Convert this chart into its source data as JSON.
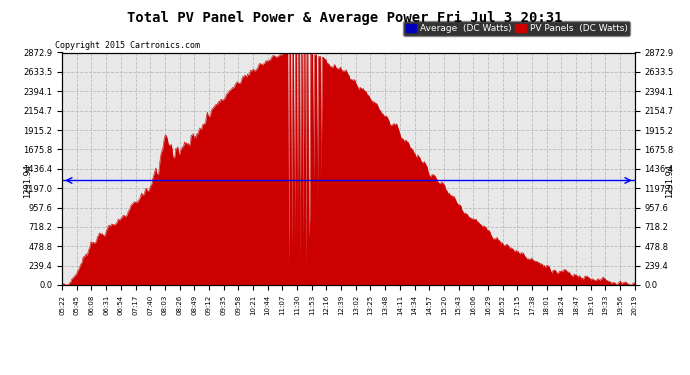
{
  "title": "Total PV Panel Power & Average Power Fri Jul 3 20:31",
  "copyright": "Copyright 2015 Cartronics.com",
  "average_value": 1291.94,
  "y_max": 2872.9,
  "y_ticks": [
    0.0,
    239.4,
    478.8,
    718.2,
    957.6,
    1197.0,
    1436.4,
    1675.8,
    1915.2,
    2154.7,
    2394.1,
    2633.5,
    2872.9
  ],
  "x_labels": [
    "05:22",
    "05:45",
    "06:08",
    "06:31",
    "06:54",
    "07:17",
    "07:40",
    "08:03",
    "08:26",
    "08:49",
    "09:12",
    "09:35",
    "09:58",
    "10:21",
    "10:44",
    "11:07",
    "11:30",
    "11:53",
    "12:16",
    "12:39",
    "13:02",
    "13:25",
    "13:48",
    "14:11",
    "14:34",
    "14:57",
    "15:20",
    "15:43",
    "16:06",
    "16:29",
    "16:52",
    "17:15",
    "17:38",
    "18:01",
    "18:24",
    "18:47",
    "19:10",
    "19:33",
    "19:56",
    "20:19"
  ],
  "avg_label": "1291.94",
  "legend_avg_bg": "#0000bb",
  "legend_pv_bg": "#cc0000",
  "area_color": "#cc0000",
  "avg_line_color": "#0000ff",
  "grid_color": "#bbbbbb",
  "bg_color": "#ffffff",
  "plot_bg_color": "#e8e8e8"
}
